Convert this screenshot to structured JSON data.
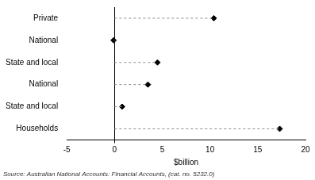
{
  "chart_data": {
    "type": "dot",
    "orientation": "horizontal",
    "categories": [
      "Private",
      "National",
      "State and local",
      "National",
      "State and local",
      "Households"
    ],
    "values": [
      10.4,
      -0.1,
      4.5,
      3.5,
      0.8,
      17.3
    ],
    "color": "#000000",
    "marker": "diamond",
    "line_style": "dashed",
    "xlabel": "$billion",
    "xlim": [
      -5,
      20
    ],
    "xticks": [
      -5,
      0,
      5,
      10,
      15,
      20
    ],
    "grid": false,
    "note": "Source: Australian National Accounts: Financial Accounts, (cat. no. 5232.0)"
  }
}
